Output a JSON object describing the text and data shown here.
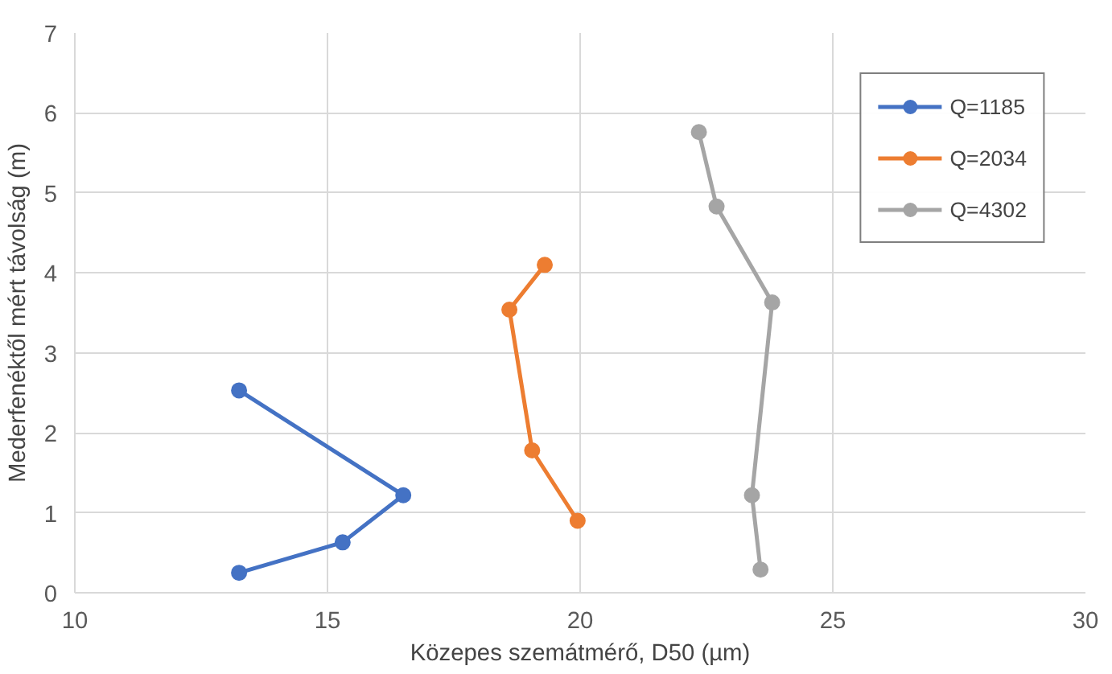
{
  "chart_data": {
    "type": "line",
    "xlabel": "Közepes szemátmérő, D50 (µm)",
    "ylabel": "Mederfenéktől mért távolság (m)",
    "xlim": [
      10,
      30
    ],
    "xticks": [
      10,
      15,
      20,
      25,
      30
    ],
    "ylim": [
      0,
      7
    ],
    "yticks": [
      0,
      1,
      2,
      3,
      4,
      5,
      6,
      7
    ],
    "grid": true,
    "legend": "top right",
    "marker": "circle",
    "line_style": "solid",
    "series": [
      {
        "name": "Q=1185",
        "color": "#4472c4",
        "x": [
          13.25,
          16.5,
          15.3,
          13.25
        ],
        "values": [
          2.53,
          1.22,
          0.63,
          0.25
        ]
      },
      {
        "name": "Q=2034",
        "color": "#ed7d31",
        "x": [
          19.3,
          18.6,
          19.05,
          19.95
        ],
        "values": [
          4.1,
          3.54,
          1.78,
          0.9
        ]
      },
      {
        "name": "Q=4302",
        "color": "#a5a5a5",
        "x": [
          22.35,
          22.7,
          23.8,
          23.4,
          23.57
        ],
        "values": [
          5.76,
          4.83,
          3.63,
          1.22,
          0.29
        ]
      }
    ]
  }
}
